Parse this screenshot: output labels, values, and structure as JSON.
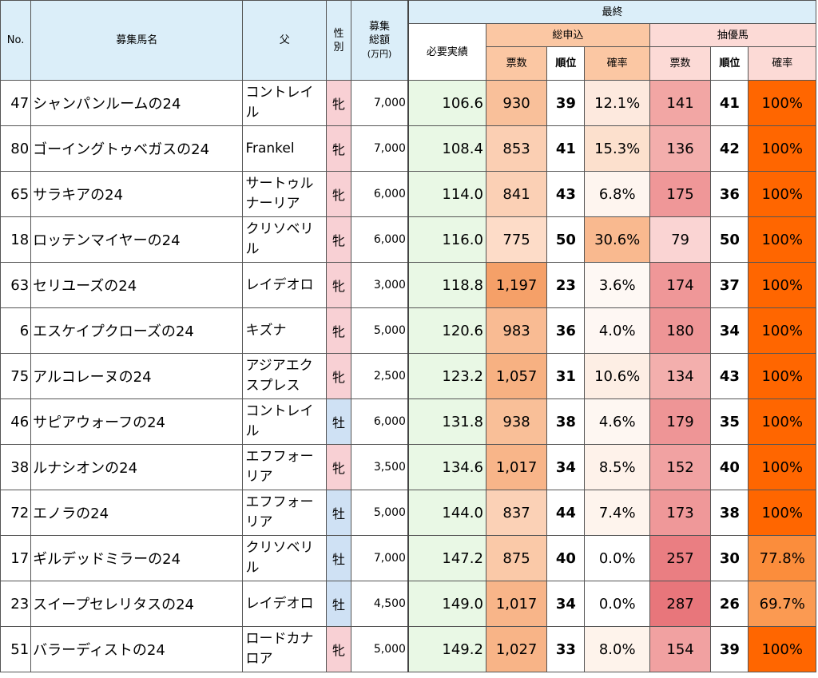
{
  "headers": {
    "no": "No.",
    "name": "募集馬名",
    "sire": "父",
    "sex_line1": "性",
    "sex_line2": "別",
    "amount_line1": "募集",
    "amount_line2": "総額",
    "amount_line3": "(万円)",
    "final": "最終",
    "required": "必要実績",
    "total_applications": "総申込",
    "selected_horse": "抽優馬",
    "votes": "票数",
    "rank": "順位",
    "probability": "確率"
  },
  "rows": [
    {
      "no": "47",
      "name": "シャンパンルームの24",
      "sire": "コントレイル",
      "sex": "牝",
      "amount": "7,000",
      "required": "106.6",
      "votes": "930",
      "rank": "39",
      "prob": "12.1%",
      "votes2": "141",
      "rank2": "41",
      "prob2": "100%",
      "c_votes": "#f9c09a",
      "c_prob": "#fde9de",
      "c_votes2": "#f2a6a4",
      "c_prob2": "#ff6600"
    },
    {
      "no": "80",
      "name": "ゴーイングトゥベガスの24",
      "sire": "Frankel",
      "sex": "牝",
      "amount": "7,000",
      "required": "108.4",
      "votes": "853",
      "rank": "41",
      "prob": "15.3%",
      "votes2": "136",
      "rank2": "42",
      "prob2": "100%",
      "c_votes": "#fbcfb3",
      "c_prob": "#fce0cd",
      "c_votes2": "#f3aeac",
      "c_prob2": "#ff6600"
    },
    {
      "no": "65",
      "name": "サラキアの24",
      "sire": "サートゥルナーリア",
      "sex": "牝",
      "amount": "6,000",
      "required": "114.0",
      "votes": "841",
      "rank": "43",
      "prob": "6.8%",
      "votes2": "175",
      "rank2": "36",
      "prob2": "100%",
      "c_votes": "#fbd0b5",
      "c_prob": "#fef5ef",
      "c_votes2": "#ef9798",
      "c_prob2": "#ff6600"
    },
    {
      "no": "18",
      "name": "ロッテンマイヤーの24",
      "sire": "クリソベリル",
      "sex": "牝",
      "amount": "6,000",
      "required": "116.0",
      "votes": "775",
      "rank": "50",
      "prob": "30.6%",
      "votes2": "79",
      "rank2": "50",
      "prob2": "100%",
      "c_votes": "#fddcc8",
      "c_prob": "#f9b98f",
      "c_votes2": "#fad4d3",
      "c_prob2": "#ff6600"
    },
    {
      "no": "63",
      "name": "セリユーズの24",
      "sire": "レイデオロ",
      "sex": "牝",
      "amount": "3,000",
      "required": "118.8",
      "votes": "1,197",
      "rank": "23",
      "prob": "3.6%",
      "votes2": "174",
      "rank2": "37",
      "prob2": "100%",
      "c_votes": "#f5a068",
      "c_prob": "#fef8f4",
      "c_votes2": "#ef9798",
      "c_prob2": "#ff6600"
    },
    {
      "no": "6",
      "name": "エスケイプクローズの24",
      "sire": "キズナ",
      "sex": "牝",
      "amount": "5,000",
      "required": "120.6",
      "votes": "983",
      "rank": "36",
      "prob": "4.0%",
      "votes2": "180",
      "rank2": "34",
      "prob2": "100%",
      "c_votes": "#f9bb93",
      "c_prob": "#fef7f3",
      "c_votes2": "#ee9596",
      "c_prob2": "#ff6600"
    },
    {
      "no": "75",
      "name": "アルコレーヌの24",
      "sire": "アジアエクスプレス",
      "sex": "牝",
      "amount": "2,500",
      "required": "123.2",
      "votes": "1,057",
      "rank": "31",
      "prob": "10.6%",
      "votes2": "134",
      "rank2": "43",
      "prob2": "100%",
      "c_votes": "#f7b182",
      "c_prob": "#fdeee4",
      "c_votes2": "#f3afad",
      "c_prob2": "#ff6600"
    },
    {
      "no": "46",
      "name": "サピアウォーフの24",
      "sire": "コントレイル",
      "sex": "牡",
      "amount": "6,000",
      "required": "131.8",
      "votes": "938",
      "rank": "38",
      "prob": "4.6%",
      "votes2": "179",
      "rank2": "35",
      "prob2": "100%",
      "c_votes": "#f9bf98",
      "c_prob": "#fef7f2",
      "c_votes2": "#ee9596",
      "c_prob2": "#ff6600"
    },
    {
      "no": "38",
      "name": "ルナシオンの24",
      "sire": "エフフォーリア",
      "sex": "牝",
      "amount": "3,500",
      "required": "134.6",
      "votes": "1,017",
      "rank": "34",
      "prob": "8.5%",
      "votes2": "152",
      "rank2": "40",
      "prob2": "100%",
      "c_votes": "#f8b589",
      "c_prob": "#fef2ea",
      "c_votes2": "#f1a2a2",
      "c_prob2": "#ff6600"
    },
    {
      "no": "72",
      "name": "エノラの24",
      "sire": "エフフォーリア",
      "sex": "牡",
      "amount": "5,000",
      "required": "144.0",
      "votes": "837",
      "rank": "44",
      "prob": "7.4%",
      "votes2": "173",
      "rank2": "38",
      "prob2": "100%",
      "c_votes": "#fbd1b6",
      "c_prob": "#fef4ed",
      "c_votes2": "#ef9899",
      "c_prob2": "#ff6600"
    },
    {
      "no": "17",
      "name": "ギルデッドミラーの24",
      "sire": "クリソベリル",
      "sex": "牡",
      "amount": "7,000",
      "required": "147.2",
      "votes": "875",
      "rank": "40",
      "prob": "0.0%",
      "votes2": "257",
      "rank2": "30",
      "prob2": "77.8%",
      "c_votes": "#fac9a8",
      "c_prob": "#ffffff",
      "c_votes2": "#ea7e82",
      "c_prob2": "#fb8d3c"
    },
    {
      "no": "23",
      "name": "スイープセレリタスの24",
      "sire": "レイデオロ",
      "sex": "牡",
      "amount": "4,500",
      "required": "149.0",
      "votes": "1,017",
      "rank": "34",
      "prob": "0.0%",
      "votes2": "287",
      "rank2": "26",
      "prob2": "69.7%",
      "c_votes": "#f8b589",
      "c_prob": "#ffffff",
      "c_votes2": "#e8767b",
      "c_prob2": "#fb9a52"
    },
    {
      "no": "51",
      "name": "バラーディストの24",
      "sire": "ロードカナロア",
      "sex": "牝",
      "amount": "5,000",
      "required": "149.2",
      "votes": "1,027",
      "rank": "33",
      "prob": "8.0%",
      "votes2": "154",
      "rank2": "39",
      "prob2": "100%",
      "c_votes": "#f8b487",
      "c_prob": "#fef3eb",
      "c_votes2": "#f1a1a1",
      "c_prob2": "#ff6600"
    }
  ]
}
